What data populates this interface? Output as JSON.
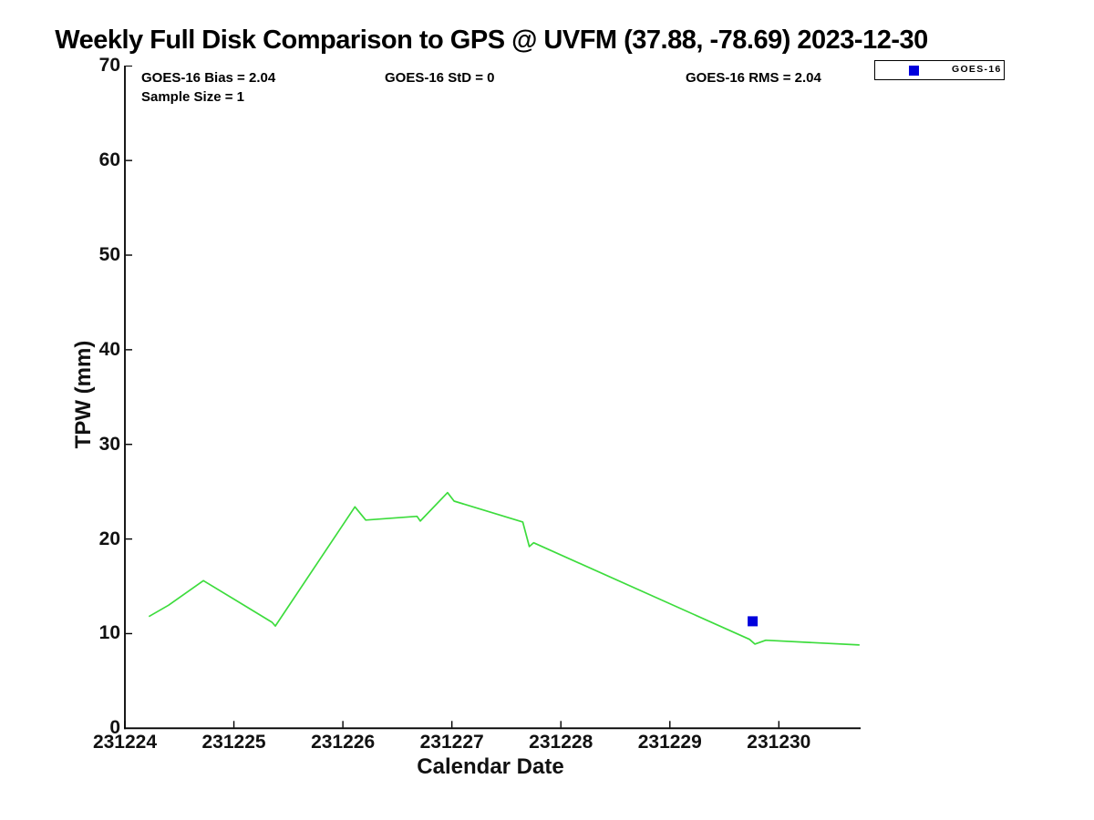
{
  "figure": {
    "title": "Weekly Full Disk Comparison to GPS @ UVFM (37.88, -78.69) 2023-12-30"
  },
  "stats": {
    "bias": "GOES-16 Bias = 2.04",
    "std": "GOES-16 StD = 0",
    "rms": "GOES-16 RMS = 2.04",
    "sample_size": "Sample Size = 1"
  },
  "axes": {
    "xlabel": "Calendar Date",
    "ylabel": "TPW (mm)"
  },
  "legend": {
    "position": "top-right",
    "entries": [
      {
        "label": "GOES-16",
        "marker": "square",
        "color": "#0000dd"
      }
    ]
  },
  "colors": {
    "gps_line": "#3ddc3d",
    "goes_marker": "#0000dd",
    "axis": "#000000"
  },
  "chart_data": {
    "type": "line",
    "title": "Weekly Full Disk Comparison to GPS @ UVFM (37.88, -78.69) 2023-12-30",
    "xlabel": "Calendar Date",
    "ylabel": "TPW (mm)",
    "xlim": [
      231224,
      231230.75
    ],
    "ylim": [
      0,
      70
    ],
    "x_ticks": [
      231224,
      231225,
      231226,
      231227,
      231228,
      231229,
      231230
    ],
    "x_tick_labels": [
      "231224",
      "231225",
      "231226",
      "231227",
      "231228",
      "231229",
      "231230"
    ],
    "y_ticks": [
      0,
      10,
      20,
      30,
      40,
      50,
      60,
      70
    ],
    "y_tick_labels": [
      "0",
      "10",
      "20",
      "30",
      "40",
      "50",
      "60",
      "70"
    ],
    "grid": false,
    "annotations": [
      "GOES-16 Bias = 2.04",
      "GOES-16 StD = 0",
      "GOES-16 RMS = 2.04",
      "Sample Size = 1"
    ],
    "series": [
      {
        "name": "GPS",
        "type": "line",
        "color": "#3ddc3d",
        "points": [
          [
            231224.22,
            11.8
          ],
          [
            231224.4,
            13.0
          ],
          [
            231224.72,
            15.6
          ],
          [
            231225.35,
            11.2
          ],
          [
            231225.38,
            10.8
          ],
          [
            231226.11,
            23.4
          ],
          [
            231226.21,
            22.0
          ],
          [
            231226.68,
            22.4
          ],
          [
            231226.71,
            21.9
          ],
          [
            231226.96,
            24.9
          ],
          [
            231227.02,
            24.0
          ],
          [
            231227.65,
            21.8
          ],
          [
            231227.71,
            19.2
          ],
          [
            231227.75,
            19.6
          ],
          [
            231229.73,
            9.4
          ],
          [
            231229.78,
            8.9
          ],
          [
            231229.88,
            9.3
          ],
          [
            231230.74,
            8.8
          ]
        ]
      },
      {
        "name": "GOES-16",
        "type": "scatter",
        "marker": "square",
        "marker_size": 11,
        "color": "#0000dd",
        "points": [
          [
            231229.76,
            11.3
          ]
        ]
      }
    ]
  }
}
